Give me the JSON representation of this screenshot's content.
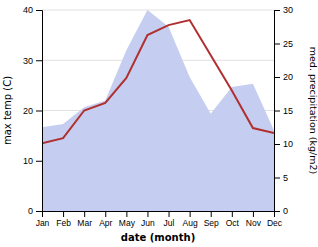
{
  "chart_data": {
    "type": "line",
    "categories": [
      "Jan",
      "Feb",
      "Mar",
      "Apr",
      "May",
      "Jun",
      "Jul",
      "Aug",
      "Sep",
      "Oct",
      "Nov",
      "Dec"
    ],
    "series": [
      {
        "type": "area",
        "axis": "y2",
        "color": "#c5cef0",
        "values": [
          12.5,
          13.0,
          15.5,
          16.5,
          24.0,
          30.0,
          27.5,
          20.0,
          14.5,
          18.5,
          19.0,
          12.0
        ]
      },
      {
        "type": "line",
        "color": "#b03030",
        "values": [
          13.5,
          14.5,
          20.0,
          21.5,
          26.5,
          35.0,
          37.0,
          38.0,
          31.0,
          24.0,
          16.5,
          15.5
        ]
      }
    ],
    "xlabel": "date (month)",
    "ylabel": "max temp (C)",
    "y2label": "med. precipitation (kg/m2)",
    "ylim": [
      0,
      40
    ],
    "yticks": [
      0,
      10,
      20,
      30,
      40
    ],
    "y2lim": [
      0,
      30
    ],
    "y2ticks": [
      0,
      5,
      10,
      15,
      20,
      25,
      30
    ],
    "grid": true
  }
}
